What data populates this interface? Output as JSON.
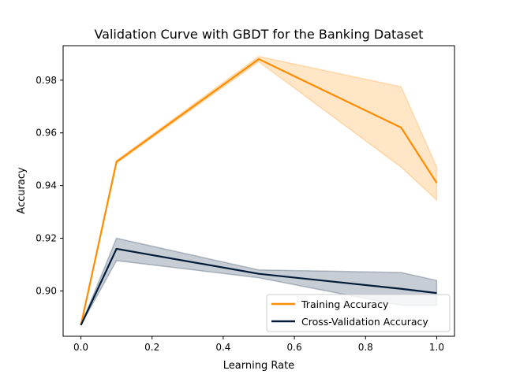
{
  "chart_data": {
    "type": "line",
    "title": "Validation Curve with GBDT for the Banking Dataset",
    "xlabel": "Learning Rate",
    "ylabel": "Accuracy",
    "xlim": [
      -0.05,
      1.05
    ],
    "ylim": [
      0.8828,
      0.9931
    ],
    "x_ticks": [
      0.0,
      0.2,
      0.4,
      0.6,
      0.8,
      1.0
    ],
    "x_tick_labels": [
      "0.0",
      "0.2",
      "0.4",
      "0.6",
      "0.8",
      "1.0"
    ],
    "y_ticks": [
      0.9,
      0.92,
      0.94,
      0.96,
      0.98
    ],
    "y_tick_labels": [
      "0.90",
      "0.92",
      "0.94",
      "0.96",
      "0.98"
    ],
    "grid": false,
    "legend_position": "lower-right",
    "series": [
      {
        "name": "Training Accuracy",
        "color": "#ff8c00",
        "x": [
          0.0,
          0.1,
          0.5,
          0.9,
          1.0
        ],
        "y": [
          0.887,
          0.949,
          0.988,
          0.962,
          0.941
        ],
        "band_upper": [
          0.887,
          0.9495,
          0.989,
          0.9775,
          0.947
        ],
        "band_lower": [
          0.887,
          0.9485,
          0.987,
          0.947,
          0.9345
        ]
      },
      {
        "name": "Cross-Validation Accuracy",
        "color": "#001c3a",
        "x": [
          0.0,
          0.1,
          0.5,
          0.9,
          1.0
        ],
        "y": [
          0.887,
          0.916,
          0.9065,
          0.9008,
          0.8992
        ],
        "band_upper": [
          0.887,
          0.92,
          0.908,
          0.907,
          0.904
        ],
        "band_lower": [
          0.887,
          0.9115,
          0.905,
          0.8945,
          0.8945
        ]
      }
    ]
  }
}
